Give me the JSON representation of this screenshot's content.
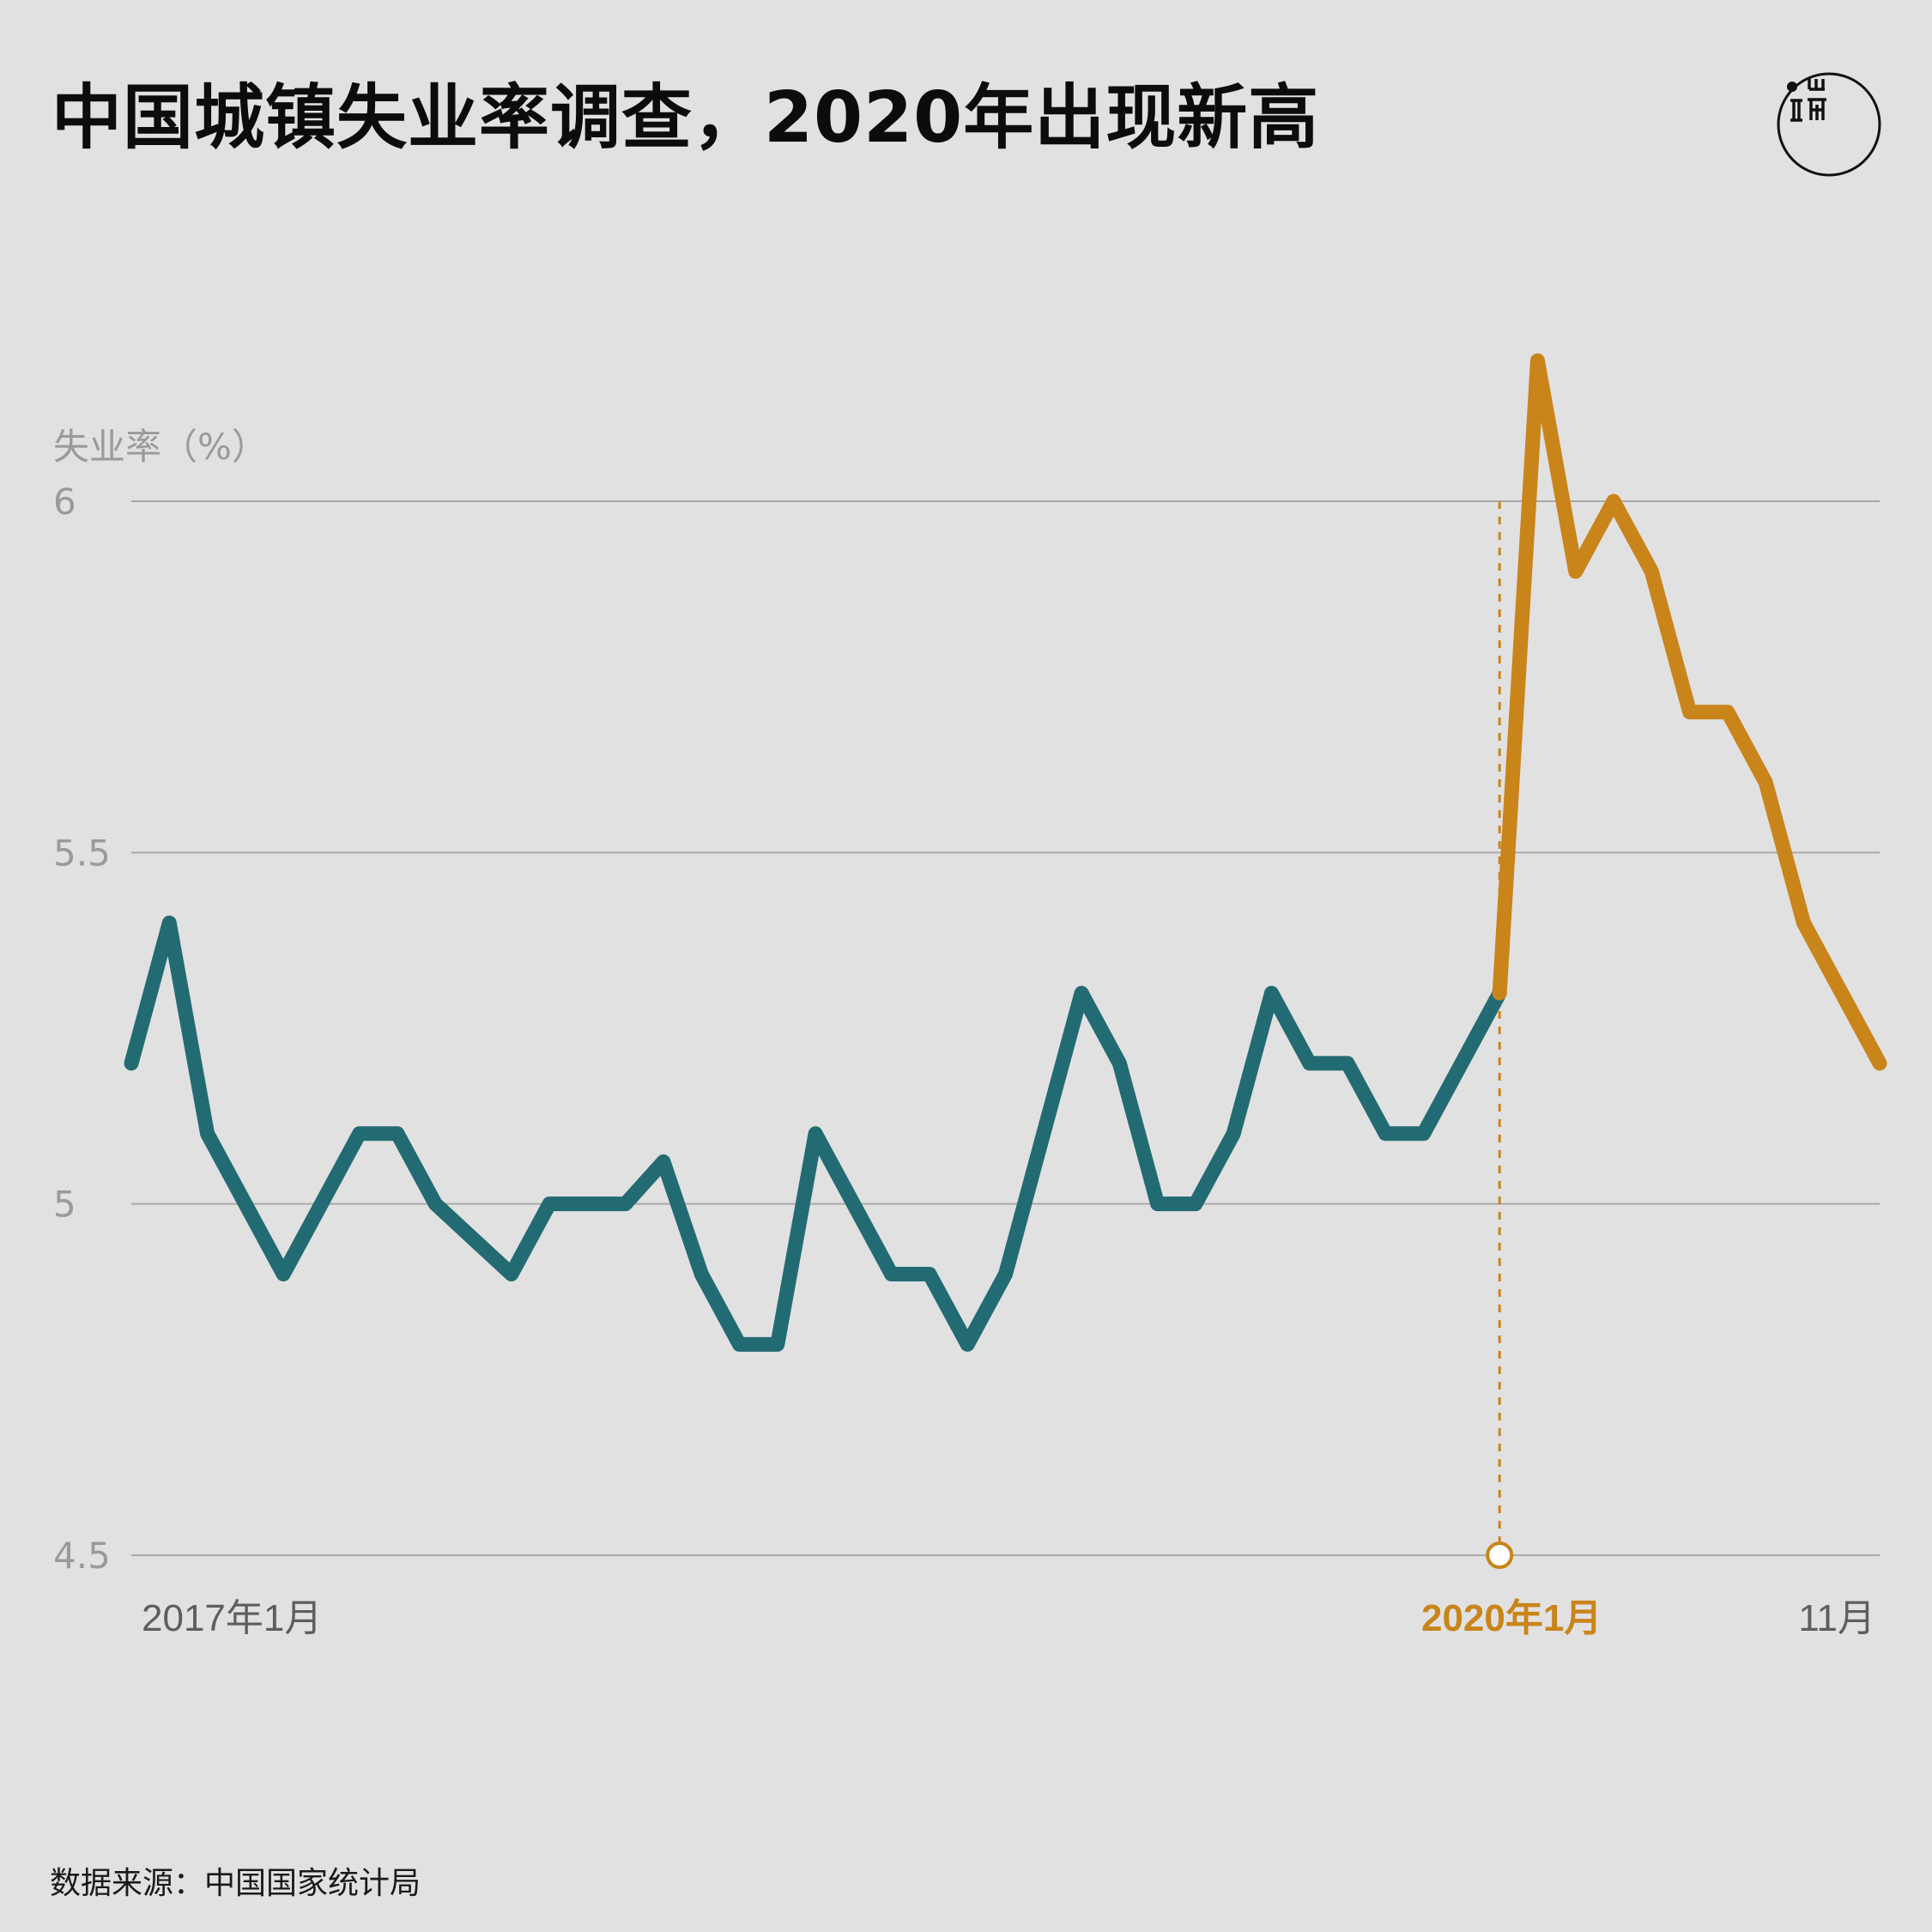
{
  "title": "中国城镇失业率调查，2020年出现新高",
  "source": "数据来源：中国国家统计局",
  "colors": {
    "background": "#e1e1e1",
    "series_before": "#236b73",
    "series_after": "#c9841a",
    "grid": "#a9a9a9",
    "axis_text": "#9a9a9a"
  },
  "logo": {
    "icon": "initium-media-logo-icon"
  },
  "chart_data": {
    "type": "line",
    "title": "中国城镇失业率调查，2020年出现新高",
    "ylabel": "失业率（%）",
    "ylim": [
      4.5,
      6.3
    ],
    "yticks": [
      {
        "value": 4.5,
        "label": "4.5"
      },
      {
        "value": 5.0,
        "label": "5"
      },
      {
        "value": 5.5,
        "label": "5.5"
      },
      {
        "value": 6.0,
        "label": "6"
      }
    ],
    "xticks": [
      {
        "x": "2017-01",
        "label": "2017年1月",
        "highlight": false
      },
      {
        "x": "2020-01",
        "label": "2020年1月",
        "highlight": true
      },
      {
        "x": "2020-11",
        "label": "11月",
        "highlight": false
      }
    ],
    "grid": true,
    "marker": {
      "x": "2020-01",
      "style": "dashed vertical line with hollow circle at baseline"
    },
    "x": [
      "2017-01",
      "2017-02",
      "2017-03",
      "2017-04",
      "2017-05",
      "2017-06",
      "2017-07",
      "2017-08",
      "2017-09",
      "2017-10",
      "2017-11",
      "2017-12",
      "2018-01",
      "2018-02",
      "2018-03",
      "2018-04",
      "2018-05",
      "2018-06",
      "2018-07",
      "2018-08",
      "2018-09",
      "2018-10",
      "2018-11",
      "2018-12",
      "2019-01",
      "2019-02",
      "2019-03",
      "2019-04",
      "2019-05",
      "2019-06",
      "2019-07",
      "2019-08",
      "2019-09",
      "2019-10",
      "2019-11",
      "2019-12",
      "2020-01",
      "2020-02",
      "2020-03",
      "2020-04",
      "2020-05",
      "2020-06",
      "2020-07",
      "2020-08",
      "2020-09",
      "2020-10",
      "2020-11"
    ],
    "series": [
      {
        "values": [
          5.2,
          5.4,
          5.1,
          5.0,
          4.9,
          5.0,
          5.1,
          5.1,
          5.0,
          4.95,
          4.9,
          5.0,
          5.0,
          5.0,
          5.06,
          4.9,
          4.8,
          4.8,
          5.1,
          5.0,
          4.9,
          4.9,
          4.8,
          4.9,
          5.1,
          5.3,
          5.2,
          5.0,
          5.0,
          5.1,
          5.3,
          5.2,
          5.2,
          5.1,
          5.1,
          5.2,
          5.3,
          null,
          null,
          null,
          null,
          null,
          null,
          null,
          null,
          null,
          null
        ]
      },
      {
        "values": [
          null,
          null,
          null,
          null,
          null,
          null,
          null,
          null,
          null,
          null,
          null,
          null,
          null,
          null,
          null,
          null,
          null,
          null,
          null,
          null,
          null,
          null,
          null,
          null,
          null,
          null,
          null,
          null,
          null,
          null,
          null,
          null,
          null,
          null,
          null,
          null,
          5.3,
          6.2,
          5.9,
          6.0,
          5.9,
          5.7,
          5.7,
          5.6,
          5.4,
          5.3,
          5.2
        ]
      }
    ]
  }
}
